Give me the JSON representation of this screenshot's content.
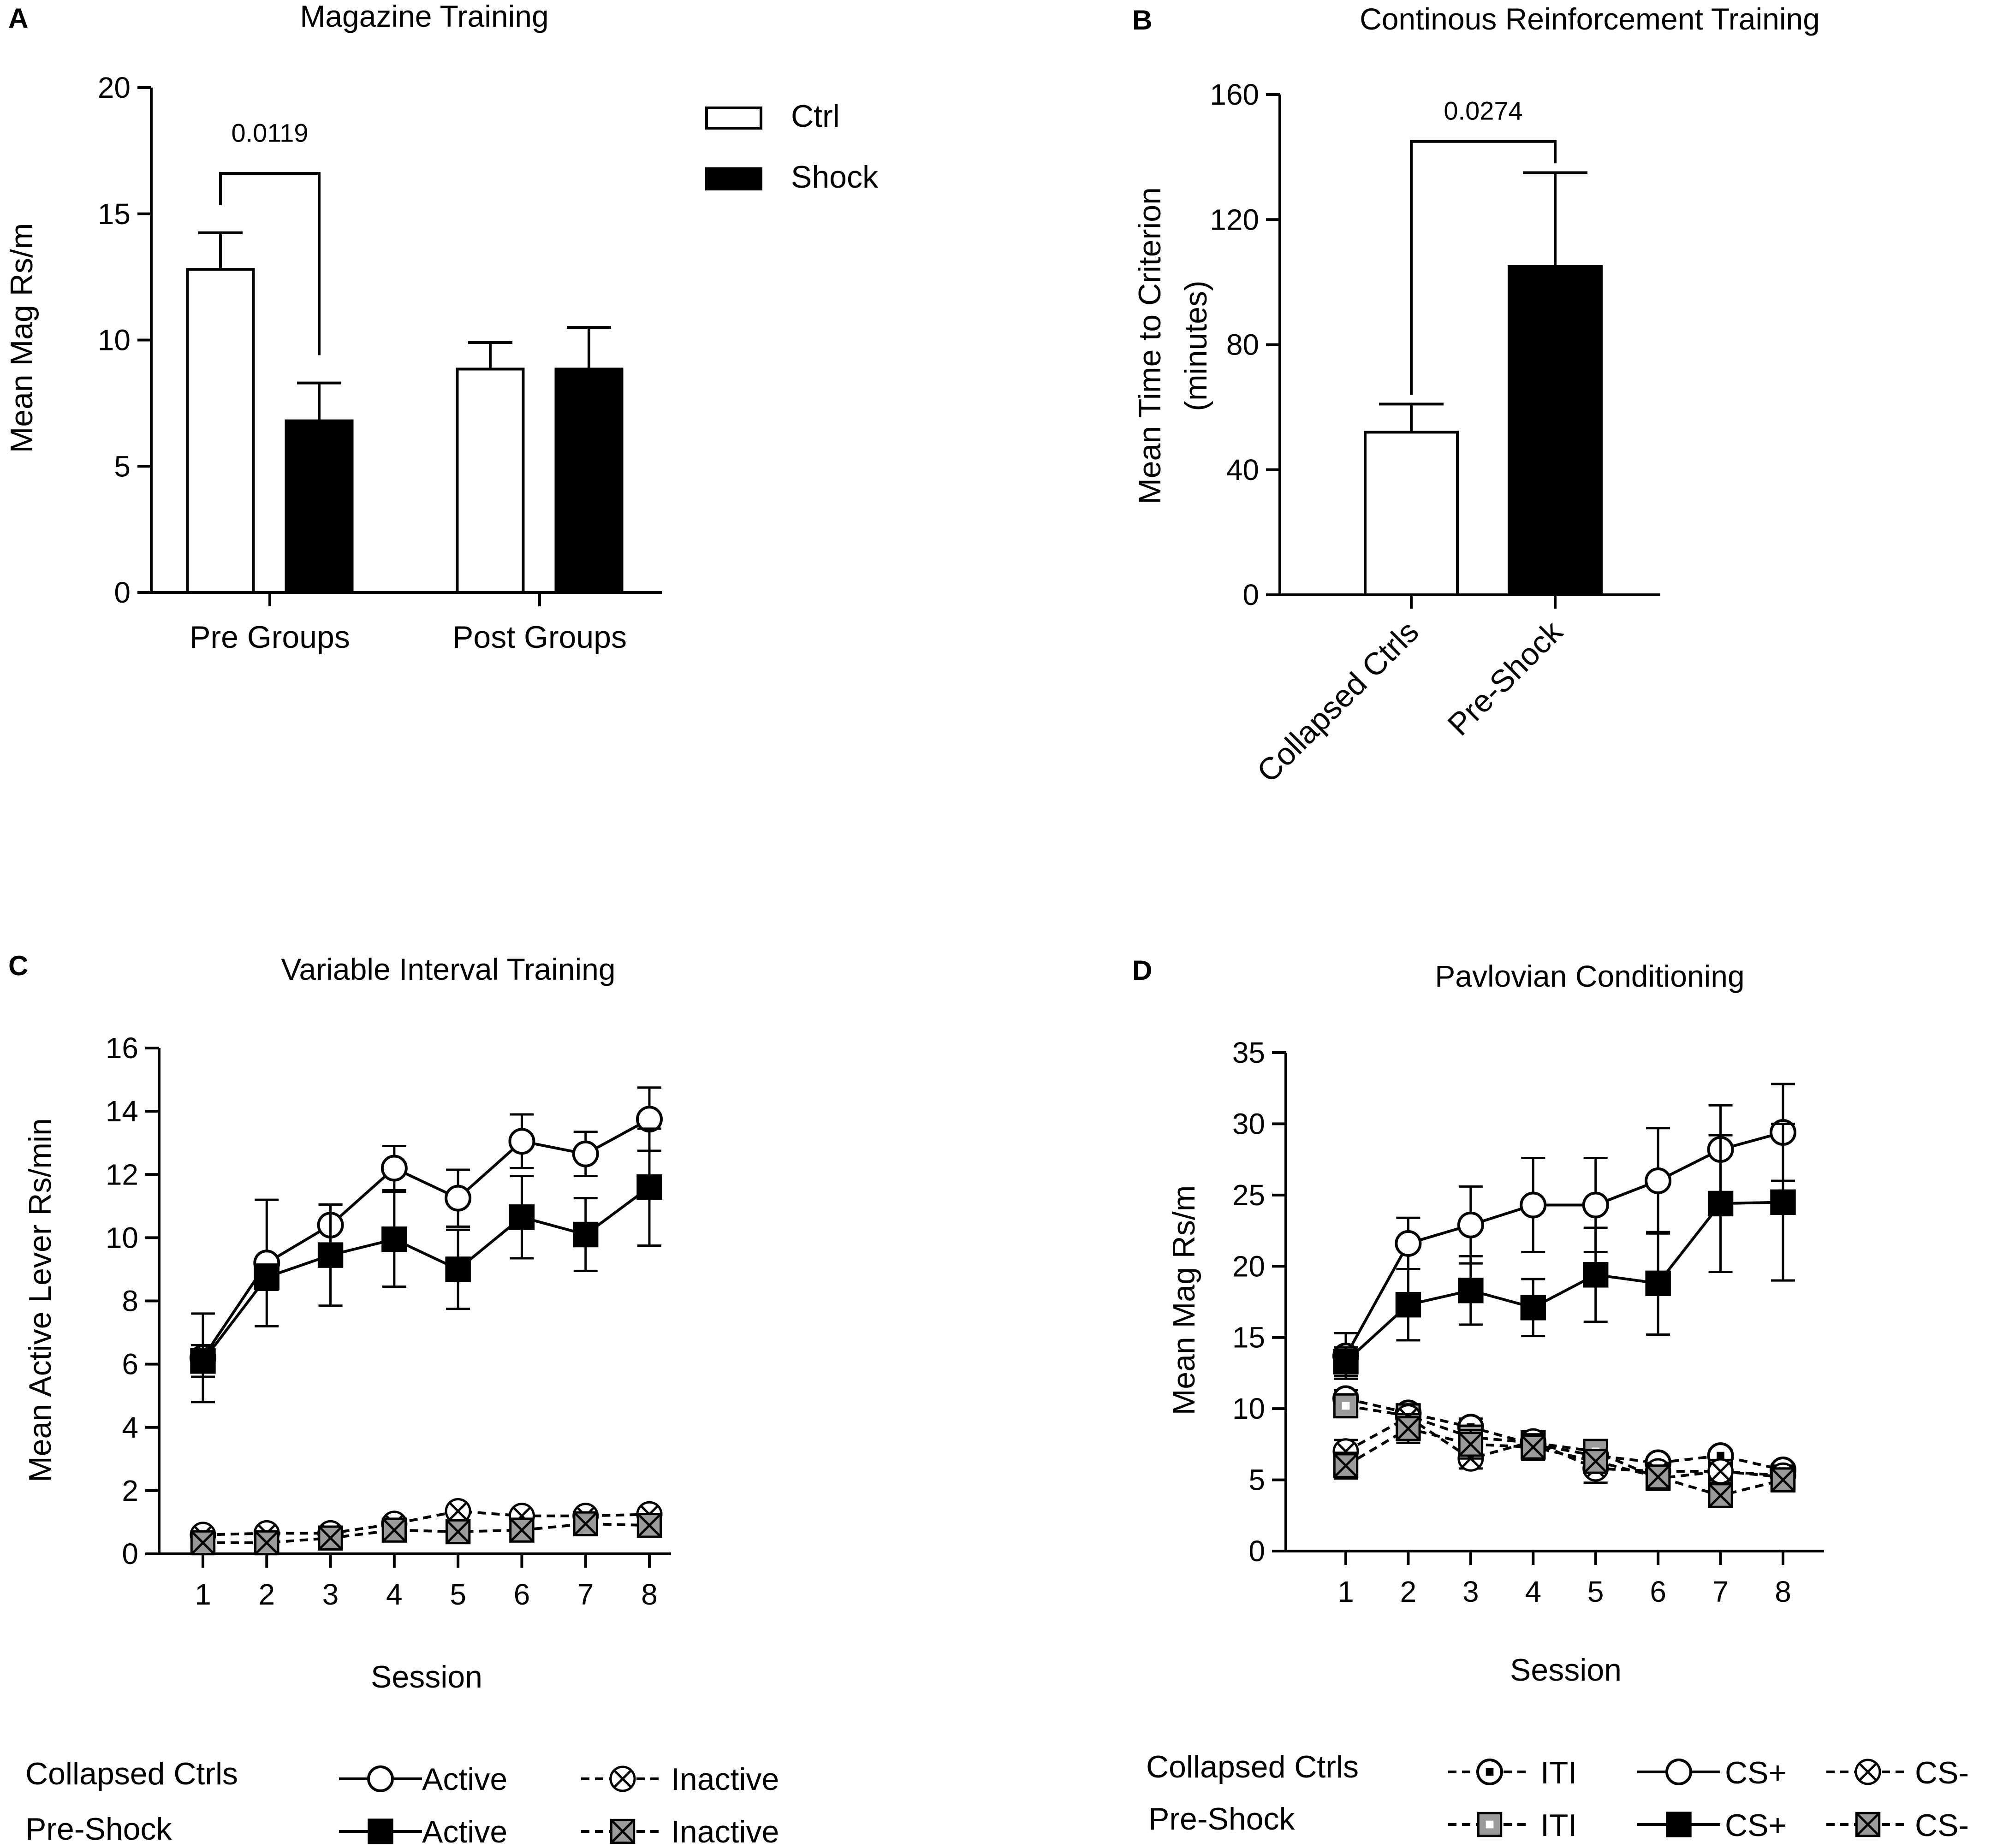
{
  "panels": {
    "A": {
      "letter": "A",
      "chart_data": {
        "type": "bar",
        "title": "Magazine Training",
        "xlabel": "",
        "ylabel": "Mean Mag Rs/m",
        "ylim": [
          0,
          20
        ],
        "yticks": [
          "0",
          "5",
          "10",
          "15",
          "20"
        ],
        "categories": [
          "Pre Groups",
          "Post Groups"
        ],
        "series": [
          {
            "name": "Ctrl",
            "fill": "#ffffff",
            "values": [
              12.8,
              8.85
            ],
            "errors": [
              1.45,
              1.05
            ]
          },
          {
            "name": "Shock",
            "fill": "#000000",
            "values": [
              6.8,
              8.85
            ],
            "errors": [
              1.5,
              1.65
            ]
          }
        ],
        "annotation": {
          "text": "0.0119",
          "category": "Pre Groups"
        },
        "legend": [
          {
            "label": "Ctrl"
          },
          {
            "label": "Shock"
          }
        ]
      }
    },
    "B": {
      "letter": "B",
      "chart_data": {
        "type": "bar",
        "title": "Continous Reinforcement Training",
        "xlabel": "",
        "ylabel_line1": "Mean Time to Criterion",
        "ylabel_line2": "(minutes)",
        "ylim": [
          0,
          160
        ],
        "yticks": [
          "0",
          "40",
          "80",
          "120",
          "160"
        ],
        "categories": [
          "Collapsed Ctrls",
          "Pre-Shock"
        ],
        "values": [
          52,
          105
        ],
        "errors": [
          9,
          30
        ],
        "fills": [
          "#ffffff",
          "#000000"
        ],
        "annotation": {
          "text": "0.0274"
        }
      }
    },
    "C": {
      "letter": "C",
      "chart_data": {
        "type": "line",
        "title": "Variable Interval Training",
        "xlabel": "Session",
        "ylabel": "Mean Active Lever Rs/min",
        "ylim": [
          0,
          16
        ],
        "yticks": [
          "0",
          "2",
          "4",
          "6",
          "8",
          "10",
          "12",
          "14",
          "16"
        ],
        "x": [
          1,
          2,
          3,
          4,
          5,
          6,
          7,
          8
        ],
        "xticks": [
          "1",
          "2",
          "3",
          "4",
          "5",
          "6",
          "7",
          "8"
        ],
        "series": [
          {
            "name": "Collapsed Ctrls Active",
            "marker": "circle-open",
            "dash": false,
            "values": [
              6.2,
              9.2,
              10.4,
              12.2,
              11.25,
              13.05,
              12.65,
              13.75
            ],
            "errors": [
              1.4,
              2.0,
              0.65,
              0.7,
              0.9,
              0.85,
              0.7,
              1.0
            ]
          },
          {
            "name": "Pre-Shock Active",
            "marker": "square-filled",
            "dash": false,
            "values": [
              6.1,
              8.75,
              9.45,
              9.95,
              9.0,
              10.65,
              10.1,
              11.6
            ],
            "errors": [
              0.5,
              0.4,
              1.6,
              1.5,
              1.25,
              1.3,
              1.15,
              1.85
            ]
          },
          {
            "name": "Collapsed Ctrls Inactive",
            "marker": "circle-x",
            "dash": true,
            "values": [
              0.6,
              0.65,
              0.65,
              0.95,
              1.35,
              1.2,
              1.2,
              1.25
            ],
            "errors": [
              0.1,
              0.1,
              0.1,
              0.1,
              0.1,
              0.1,
              0.1,
              0.1
            ]
          },
          {
            "name": "Pre-Shock Inactive",
            "marker": "square-x-grey",
            "dash": true,
            "values": [
              0.35,
              0.35,
              0.5,
              0.75,
              0.7,
              0.75,
              0.95,
              0.9
            ],
            "errors": [
              0.1,
              0.1,
              0.1,
              0.1,
              0.1,
              0.1,
              0.1,
              0.1
            ]
          }
        ],
        "legend": {
          "row_labels": [
            "Collapsed Ctrls",
            "Pre-Shock"
          ],
          "entries": [
            [
              "Active",
              "Inactive"
            ],
            [
              "Active",
              "Inactive"
            ]
          ]
        }
      }
    },
    "D": {
      "letter": "D",
      "chart_data": {
        "type": "line",
        "title": "Pavlovian Conditioning",
        "xlabel": "Session",
        "ylabel": "Mean Mag Rs/m",
        "ylim": [
          0,
          35
        ],
        "yticks": [
          "0",
          "5",
          "10",
          "15",
          "20",
          "25",
          "30",
          "35"
        ],
        "x": [
          1,
          2,
          3,
          4,
          5,
          6,
          7,
          8
        ],
        "xticks": [
          "1",
          "2",
          "3",
          "4",
          "5",
          "6",
          "7",
          "8"
        ],
        "series": [
          {
            "name": "Collapsed Ctrls CS+",
            "marker": "circle-open",
            "dash": false,
            "values": [
              13.7,
              21.6,
              22.9,
              24.3,
              24.3,
              26.0,
              28.2,
              29.4
            ],
            "errors": [
              1.6,
              1.8,
              2.7,
              3.3,
              3.3,
              3.7,
              3.1,
              3.4
            ]
          },
          {
            "name": "Pre-Shock CS+",
            "marker": "square-filled",
            "dash": false,
            "values": [
              13.3,
              17.3,
              18.3,
              17.1,
              19.4,
              18.8,
              24.4,
              24.5
            ],
            "errors": [
              1.0,
              2.5,
              2.4,
              2.0,
              3.3,
              3.6,
              4.8,
              5.5
            ]
          },
          {
            "name": "Collapsed Ctrls ITI",
            "marker": "circle-dot",
            "dash": true,
            "values": [
              10.7,
              9.7,
              8.7,
              7.5,
              6.7,
              6.2,
              6.7,
              5.7
            ],
            "errors": [
              0.6,
              0.6,
              0.6,
              0.6,
              0.6,
              0.4,
              0.4,
              0.4
            ]
          },
          {
            "name": "Pre-Shock ITI",
            "marker": "square-dot-grey",
            "dash": true,
            "values": [
              10.2,
              9.5,
              8.0,
              7.6,
              7.0,
              5.1,
              5.6,
              5.2
            ],
            "errors": [
              0.8,
              0.8,
              0.8,
              0.6,
              0.8,
              0.5,
              0.5,
              0.5
            ]
          },
          {
            "name": "Collapsed Ctrls CS-",
            "marker": "circle-x",
            "dash": true,
            "values": [
              7.0,
              9.4,
              6.5,
              7.7,
              5.8,
              5.6,
              5.6,
              5.3
            ],
            "errors": [
              0.8,
              0.9,
              0.7,
              0.7,
              1.0,
              0.6,
              0.6,
              0.6
            ]
          },
          {
            "name": "Pre-Shock CS-",
            "marker": "square-x-grey",
            "dash": true,
            "values": [
              6.0,
              8.6,
              7.5,
              7.3,
              6.3,
              5.2,
              3.9,
              5.0
            ],
            "errors": [
              0.9,
              1.0,
              1.0,
              0.9,
              0.8,
              0.7,
              0.7,
              0.8
            ]
          }
        ],
        "legend": {
          "row_labels": [
            "Collapsed Ctrls",
            "Pre-Shock"
          ],
          "entries": [
            [
              "ITI",
              "CS+",
              "CS-"
            ],
            [
              "ITI",
              "CS+",
              "CS-"
            ]
          ]
        }
      }
    }
  }
}
